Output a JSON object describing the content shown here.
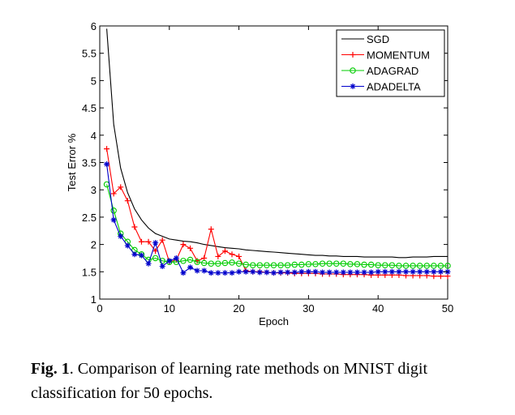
{
  "caption": {
    "label": "Fig. 1",
    "text": ". Comparison of learning rate methods on MNIST digit classification for 50 epochs."
  },
  "chart_data": {
    "type": "line",
    "title": "",
    "xlabel": "Epoch",
    "ylabel": "Test Error %",
    "xlim": [
      0,
      50
    ],
    "ylim": [
      1,
      6
    ],
    "xticks": [
      0,
      10,
      20,
      30,
      40,
      50
    ],
    "yticks": [
      1,
      1.5,
      2,
      2.5,
      3,
      3.5,
      4,
      4.5,
      5,
      5.5,
      6
    ],
    "grid": false,
    "legend_position": "top-right",
    "x": [
      1,
      2,
      3,
      4,
      5,
      6,
      7,
      8,
      9,
      10,
      11,
      12,
      13,
      14,
      15,
      16,
      17,
      18,
      19,
      20,
      21,
      22,
      23,
      24,
      25,
      26,
      27,
      28,
      29,
      30,
      31,
      32,
      33,
      34,
      35,
      36,
      37,
      38,
      39,
      40,
      41,
      42,
      43,
      44,
      45,
      46,
      47,
      48,
      49,
      50
    ],
    "series": [
      {
        "name": "SGD",
        "color": "#000000",
        "marker": "none",
        "values": [
          5.95,
          4.2,
          3.4,
          2.95,
          2.65,
          2.45,
          2.3,
          2.2,
          2.15,
          2.1,
          2.08,
          2.06,
          2.05,
          2.03,
          2.0,
          1.98,
          1.96,
          1.94,
          1.93,
          1.92,
          1.9,
          1.89,
          1.88,
          1.87,
          1.86,
          1.85,
          1.84,
          1.83,
          1.82,
          1.81,
          1.8,
          1.8,
          1.79,
          1.79,
          1.78,
          1.78,
          1.78,
          1.77,
          1.77,
          1.77,
          1.77,
          1.77,
          1.76,
          1.76,
          1.77,
          1.77,
          1.77,
          1.78,
          1.78,
          1.78
        ]
      },
      {
        "name": "MOMENTUM",
        "color": "#ff0000",
        "marker": "plus",
        "values": [
          3.75,
          2.93,
          3.05,
          2.8,
          2.32,
          2.05,
          2.05,
          1.88,
          2.08,
          1.68,
          1.72,
          2.0,
          1.93,
          1.7,
          1.75,
          2.28,
          1.78,
          1.88,
          1.82,
          1.78,
          1.52,
          1.5,
          1.5,
          1.49,
          1.48,
          1.48,
          1.48,
          1.47,
          1.47,
          1.47,
          1.47,
          1.46,
          1.46,
          1.46,
          1.45,
          1.45,
          1.45,
          1.45,
          1.44,
          1.44,
          1.44,
          1.44,
          1.44,
          1.43,
          1.43,
          1.43,
          1.43,
          1.42,
          1.42,
          1.42
        ]
      },
      {
        "name": "ADAGRAD",
        "color": "#00cc00",
        "marker": "circle",
        "values": [
          3.1,
          2.62,
          2.2,
          2.05,
          1.9,
          1.82,
          1.72,
          1.75,
          1.7,
          1.68,
          1.68,
          1.7,
          1.72,
          1.68,
          1.66,
          1.65,
          1.65,
          1.66,
          1.67,
          1.65,
          1.63,
          1.62,
          1.62,
          1.62,
          1.62,
          1.62,
          1.62,
          1.63,
          1.63,
          1.64,
          1.64,
          1.65,
          1.65,
          1.65,
          1.65,
          1.64,
          1.64,
          1.63,
          1.63,
          1.62,
          1.62,
          1.62,
          1.61,
          1.61,
          1.61,
          1.61,
          1.61,
          1.61,
          1.61,
          1.61
        ]
      },
      {
        "name": "ADADELTA",
        "color": "#0000cc",
        "marker": "star",
        "values": [
          3.47,
          2.45,
          2.15,
          1.98,
          1.82,
          1.8,
          1.65,
          2.03,
          1.6,
          1.7,
          1.75,
          1.48,
          1.58,
          1.52,
          1.52,
          1.48,
          1.48,
          1.48,
          1.48,
          1.5,
          1.5,
          1.5,
          1.49,
          1.49,
          1.48,
          1.49,
          1.49,
          1.49,
          1.5,
          1.5,
          1.5,
          1.49,
          1.49,
          1.49,
          1.49,
          1.49,
          1.49,
          1.49,
          1.49,
          1.5,
          1.5,
          1.5,
          1.5,
          1.5,
          1.5,
          1.5,
          1.5,
          1.5,
          1.5,
          1.5
        ]
      }
    ]
  }
}
